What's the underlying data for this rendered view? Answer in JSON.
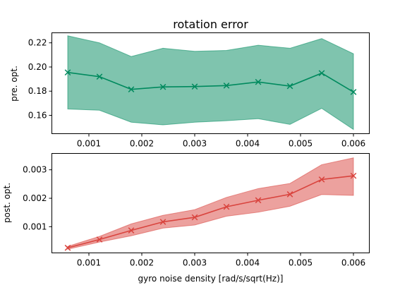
{
  "chart_data": [
    {
      "type": "area",
      "title": "rotation error",
      "xlabel": "",
      "ylabel": "pre. opt.",
      "xlim": [
        0.0003,
        0.0063
      ],
      "ylim": [
        0.1448,
        0.2283
      ],
      "xticks": [
        0.001,
        0.002,
        0.003,
        0.004,
        0.005,
        0.006
      ],
      "xtick_labels": [
        "0.001",
        "0.002",
        "0.003",
        "0.004",
        "0.005",
        "0.006"
      ],
      "yticks": [
        0.16,
        0.18,
        0.2,
        0.22
      ],
      "ytick_labels": [
        "0.16",
        "0.18",
        "0.20",
        "0.22"
      ],
      "color": "#008a5e",
      "series": [
        {
          "x": [
            0.0006,
            0.0012,
            0.0018,
            0.0024,
            0.003,
            0.0036,
            0.0042,
            0.0048,
            0.0054,
            0.006
          ],
          "mean": [
            0.1955,
            0.192,
            0.1815,
            0.1835,
            0.1838,
            0.1846,
            0.1876,
            0.1842,
            0.1949,
            0.1793
          ],
          "upper": [
            0.2258,
            0.22,
            0.2087,
            0.2155,
            0.213,
            0.2137,
            0.218,
            0.2155,
            0.2235,
            0.211
          ],
          "lower": [
            0.1652,
            0.1642,
            0.1543,
            0.1521,
            0.1543,
            0.1555,
            0.1572,
            0.1525,
            0.1658,
            0.1483
          ]
        }
      ],
      "marker": "x",
      "grid": false
    },
    {
      "type": "area",
      "title": "",
      "xlabel": "gyro noise density [rad/s/sqrt(Hz)]",
      "ylabel": "post. opt.",
      "xlim": [
        0.0003,
        0.0063
      ],
      "ylim": [
        8e-05,
        0.003575
      ],
      "xticks": [
        0.001,
        0.002,
        0.003,
        0.004,
        0.005,
        0.006
      ],
      "xtick_labels": [
        "0.001",
        "0.002",
        "0.003",
        "0.004",
        "0.005",
        "0.006"
      ],
      "yticks": [
        0.001,
        0.002,
        0.003
      ],
      "ytick_labels": [
        "0.001",
        "0.002",
        "0.003"
      ],
      "color": "#d9443e",
      "series": [
        {
          "x": [
            0.0006,
            0.0012,
            0.0018,
            0.0024,
            0.003,
            0.0036,
            0.0042,
            0.0048,
            0.0054,
            0.006
          ],
          "mean": [
            0.00026,
            0.00055,
            0.00087,
            0.00117,
            0.00133,
            0.0017,
            0.00193,
            0.00214,
            0.00266,
            0.00279
          ],
          "upper": [
            0.00031,
            0.00066,
            0.0011,
            0.0014,
            0.0016,
            0.00203,
            0.00234,
            0.00252,
            0.00318,
            0.00342
          ],
          "lower": [
            0.00021,
            0.00046,
            0.00068,
            0.00095,
            0.00106,
            0.00137,
            0.00151,
            0.00172,
            0.00213,
            0.0021
          ]
        }
      ],
      "marker": "x",
      "grid": false
    }
  ]
}
